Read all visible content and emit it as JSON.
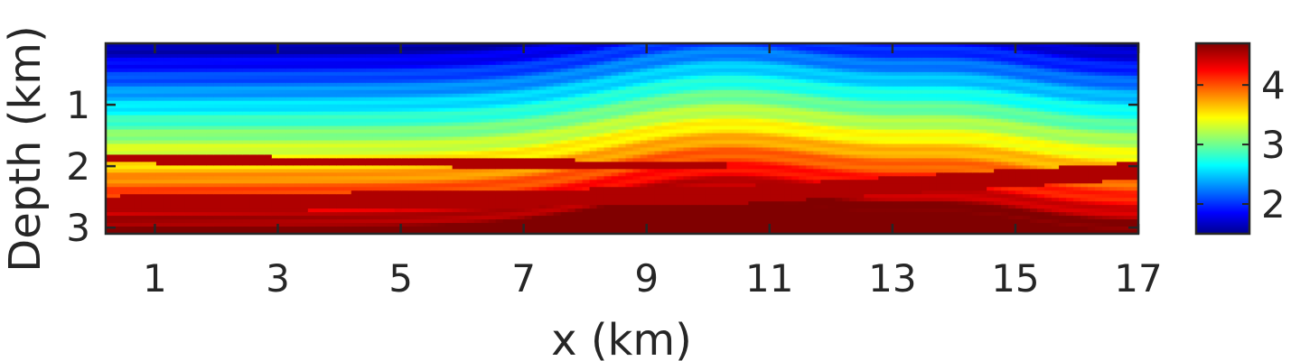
{
  "chart_data": {
    "type": "heatmap",
    "title": "",
    "xlabel": "x (km)",
    "ylabel": "Depth (km)",
    "xlim": [
      0.2,
      17
    ],
    "ylim": [
      3.1,
      0.0
    ],
    "x_ticks": [
      "1",
      "3",
      "5",
      "7",
      "9",
      "11",
      "13",
      "15",
      "17"
    ],
    "x_tick_values": [
      1,
      3,
      5,
      7,
      9,
      11,
      13,
      15,
      17
    ],
    "y_ticks": [
      "1",
      "2",
      "3"
    ],
    "y_tick_values": [
      1,
      2,
      3
    ],
    "colorbar": {
      "colormap": "jet",
      "range": [
        1.5,
        4.7
      ],
      "ticks": [
        "2",
        "3",
        "4"
      ],
      "tick_values": [
        2,
        3,
        4
      ]
    },
    "grid": false,
    "colors": {
      "jet_dark_blue": "#00008f",
      "jet_blue": "#0000ff",
      "jet_cyan": "#00ffff",
      "jet_yellow": "#ffff00",
      "jet_red": "#ff0000",
      "jet_dark_red": "#800000"
    }
  }
}
